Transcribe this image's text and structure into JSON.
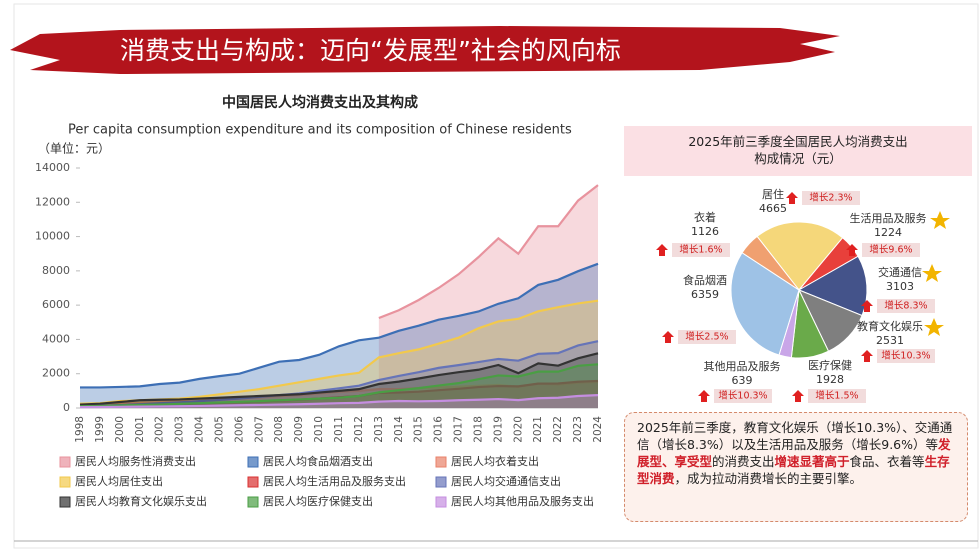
{
  "header": {
    "title": "消费支出与构成：迈向“发展型”社会的风向标"
  },
  "chart_data": [
    {
      "type": "area-line",
      "title": "中国居民人均消费支出及其构成",
      "subtitle": "Per capita consumption expenditure and its composition of Chinese residents",
      "unit": "（单位：元）",
      "categories": [
        "1998",
        "1999",
        "2000",
        "2001",
        "2002",
        "2003",
        "2004",
        "2005",
        "2006",
        "2007",
        "2008",
        "2009",
        "2010",
        "2011",
        "2012",
        "2013",
        "2014",
        "2015",
        "2016",
        "2017",
        "2018",
        "2019",
        "2020",
        "2021",
        "2022",
        "2023",
        "2024"
      ],
      "ylim": [
        0,
        14000
      ],
      "yticks": [
        0,
        2000,
        4000,
        6000,
        8000,
        10000,
        12000,
        14000
      ],
      "grid": false,
      "series": [
        {
          "name": "居民人均服务性消费支出",
          "color": "#e8939e",
          "values": [
            null,
            null,
            null,
            null,
            null,
            null,
            null,
            null,
            null,
            null,
            null,
            null,
            null,
            null,
            null,
            5250,
            5700,
            6300,
            7000,
            7800,
            8800,
            9900,
            9000,
            10600,
            10600,
            12100,
            13000
          ]
        },
        {
          "name": "居民人均食品烟酒支出",
          "color": "#3d6fb5",
          "values": [
            1200,
            1200,
            1230,
            1260,
            1400,
            1480,
            1700,
            1860,
            2000,
            2350,
            2700,
            2800,
            3100,
            3600,
            3950,
            4100,
            4500,
            4800,
            5150,
            5370,
            5630,
            6080,
            6400,
            7180,
            7480,
            7980,
            8410
          ]
        },
        {
          "name": "居民人均衣着支出",
          "color": "#e8826a",
          "values": [
            150,
            200,
            250,
            300,
            350,
            400,
            450,
            500,
            550,
            620,
            700,
            750,
            850,
            950,
            1000,
            1100,
            1100,
            1160,
            1200,
            1240,
            1290,
            1340,
            1240,
            1420,
            1370,
            1480,
            1520
          ]
        },
        {
          "name": "居民人均居住支出",
          "color": "#f2c94c",
          "values": [
            250,
            280,
            400,
            450,
            500,
            550,
            650,
            800,
            950,
            1100,
            1300,
            1500,
            1700,
            1900,
            2050,
            2950,
            3200,
            3420,
            3750,
            4100,
            4650,
            5050,
            5200,
            5640,
            5880,
            6100,
            6260
          ]
        },
        {
          "name": "居民人均生活用品及服务支出",
          "color": "#d93030",
          "values": [
            100,
            120,
            150,
            180,
            200,
            230,
            260,
            300,
            340,
            380,
            430,
            480,
            550,
            620,
            700,
            880,
            900,
            950,
            1040,
            1120,
            1220,
            1280,
            1260,
            1420,
            1430,
            1530,
            1580
          ]
        },
        {
          "name": "居民人均交通通信支出",
          "color": "#6674b8",
          "values": [
            100,
            130,
            170,
            220,
            280,
            330,
            400,
            470,
            550,
            650,
            750,
            850,
            1000,
            1150,
            1300,
            1630,
            1870,
            2090,
            2340,
            2500,
            2680,
            2860,
            2760,
            3160,
            3200,
            3650,
            3900
          ]
        },
        {
          "name": "居民人均教育文化娱乐支出",
          "color": "#333333",
          "values": [
            200,
            250,
            350,
            450,
            480,
            500,
            550,
            600,
            650,
            700,
            750,
            800,
            900,
            1000,
            1100,
            1400,
            1540,
            1720,
            1920,
            2090,
            2230,
            2510,
            2030,
            2600,
            2470,
            2900,
            3190
          ]
        },
        {
          "name": "居民人均医疗保健支出",
          "color": "#4a9e44",
          "values": [
            100,
            120,
            150,
            180,
            200,
            240,
            280,
            320,
            360,
            400,
            450,
            500,
            550,
            600,
            700,
            910,
            1040,
            1160,
            1310,
            1450,
            1680,
            1900,
            1840,
            2120,
            2120,
            2460,
            2550
          ]
        },
        {
          "name": "居民人均其他用品及服务支出",
          "color": "#c58ee0",
          "values": [
            50,
            60,
            70,
            80,
            90,
            100,
            120,
            140,
            160,
            180,
            200,
            220,
            250,
            280,
            300,
            370,
            410,
            390,
            410,
            450,
            480,
            520,
            460,
            570,
            600,
            700,
            750
          ]
        }
      ]
    },
    {
      "type": "pie",
      "title": "2025年前三季度全国居民人均消费支出构成情况（元）",
      "categories": [
        "居住",
        "生活用品及服务",
        "交通通信",
        "教育文化娱乐",
        "医疗保健",
        "其他用品及服务",
        "食品烟酒",
        "衣着"
      ],
      "values": [
        4665,
        1224,
        3103,
        2531,
        1928,
        639,
        6359,
        1126
      ],
      "colors": [
        "#f5d77a",
        "#e8403b",
        "#44538a",
        "#7f7f7f",
        "#6aaa4a",
        "#c9a6e8",
        "#9ec2e6",
        "#f0a070"
      ],
      "growth_labels": [
        "增长2.3%",
        "增长9.6%",
        "增长8.3%",
        "增长10.3%",
        "增长1.5%",
        "增长10.3%",
        "增长2.5%",
        "增长1.6%"
      ]
    }
  ],
  "note": {
    "segments": [
      {
        "text": "2025年前三季度，教育文化娱乐（增长10.3%）、交通通信（增长8.3%）以及生活用品及服务（增长9.6%）等",
        "emphasis": false
      },
      {
        "text": "发展型、享受型",
        "emphasis": true
      },
      {
        "text": "的消费支出",
        "emphasis": false
      },
      {
        "text": "增速显著高于",
        "emphasis": true
      },
      {
        "text": "食品、衣着等",
        "emphasis": false
      },
      {
        "text": "生存型消费",
        "emphasis": true
      },
      {
        "text": "，成为拉动消费增长的主要引擎。",
        "emphasis": false
      }
    ]
  }
}
